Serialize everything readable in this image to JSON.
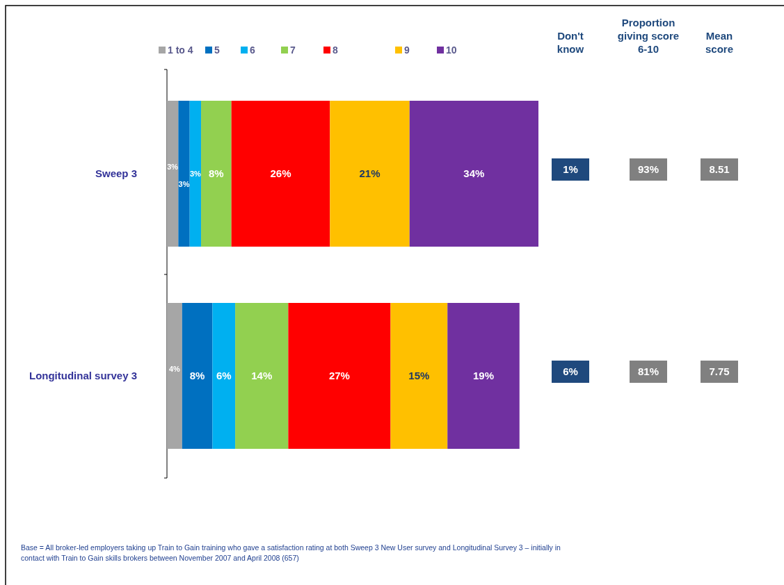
{
  "chart_data": [
    {
      "type": "bar",
      "orientation": "horizontal",
      "stacked": true,
      "legend": "top",
      "categories": [
        "Sweep 3",
        "Longitudinal survey 3"
      ],
      "series": [
        {
          "name": "1 to 4",
          "color": "#a6a6a6",
          "values": [
            3,
            4
          ],
          "value_labels": [
            "3%",
            "4%"
          ]
        },
        {
          "name": "5",
          "color": "#0070c0",
          "values": [
            3,
            8
          ],
          "value_labels": [
            "3%",
            "8%"
          ]
        },
        {
          "name": "6",
          "color": "#00b0f0",
          "values": [
            3,
            6
          ],
          "value_labels": [
            "3%",
            "6%"
          ]
        },
        {
          "name": "7",
          "color": "#92d050",
          "values": [
            8,
            14
          ],
          "value_labels": [
            "8%",
            "14%"
          ]
        },
        {
          "name": "8",
          "color": "#ff0000",
          "values": [
            26,
            27
          ],
          "value_labels": [
            "26%",
            "27%"
          ]
        },
        {
          "name": "9",
          "color": "#ffc000",
          "values": [
            21,
            15
          ],
          "value_labels": [
            "21%",
            "15%"
          ]
        },
        {
          "name": "10",
          "color": "#7030a0",
          "values": [
            34,
            19
          ],
          "value_labels": [
            "34%",
            "19%"
          ]
        }
      ],
      "annotations": [
        "Base = All broker-led employers taking up Train to Gain training who gave a satisfaction rating at both Sweep 3 New User survey and Longitudinal Survey 3 – initially in contact with Train to Gain skills brokers between November 2007 and April 2008 (657)"
      ]
    },
    {
      "type": "other",
      "categories": [
        "Don't know",
        "Proportion giving score 6-10",
        "Mean score"
      ],
      "cell_labels": [
        [
          "1%",
          "93%",
          "8.51"
        ],
        [
          "6%",
          "81%",
          "7.75"
        ]
      ],
      "colors": [
        "#1f497d",
        "#808080",
        "#808080"
      ]
    }
  ]
}
